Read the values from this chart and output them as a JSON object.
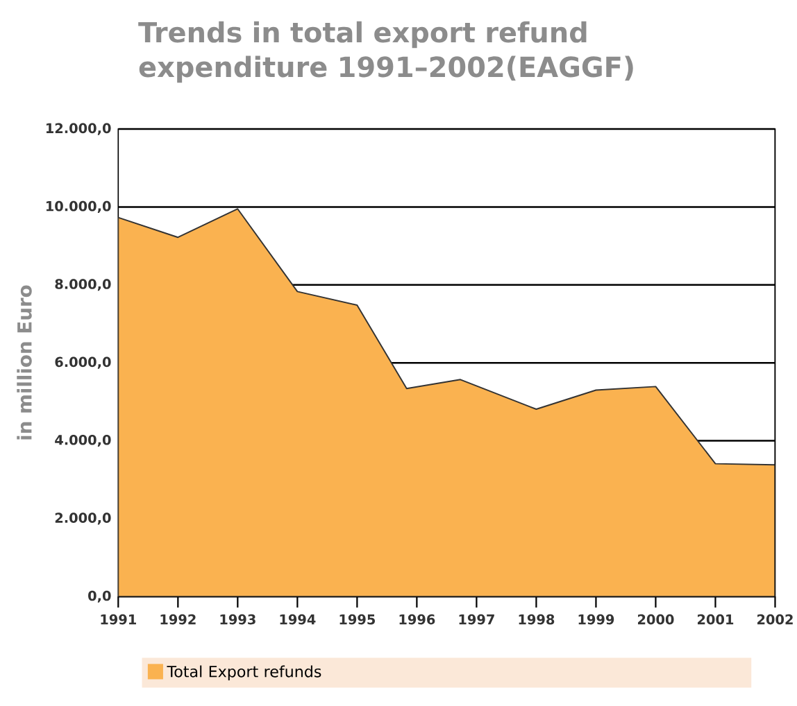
{
  "chart_data": {
    "type": "area",
    "title": "Trends in total export refund expenditure 1991–2002(EAGGF)",
    "ylabel": "in million Euro",
    "x": [
      1991,
      1992,
      1993,
      1994,
      1995,
      1995.83,
      1996.73,
      1998,
      1999,
      2000,
      2001,
      2002
    ],
    "series": [
      {
        "name": "Total Export refunds",
        "color": "#fab250",
        "values": [
          9730,
          9220,
          9950,
          7830,
          7480,
          5340,
          5570,
          4810,
          5300,
          5390,
          3410,
          3380
        ]
      }
    ],
    "xlim": [
      1991,
      2002
    ],
    "xticks": [
      1991,
      1992,
      1993,
      1994,
      1995,
      1996,
      1997,
      1998,
      1999,
      2000,
      2001,
      2002
    ],
    "ylim": [
      0,
      12000
    ],
    "yticks": [
      {
        "value": 0,
        "label": "0,0"
      },
      {
        "value": 2000,
        "label": "2.000,0"
      },
      {
        "value": 4000,
        "label": "4.000,0"
      },
      {
        "value": 6000,
        "label": "6.000,0"
      },
      {
        "value": 8000,
        "label": "8.000,0"
      },
      {
        "value": 10000,
        "label": "10.000,0"
      },
      {
        "value": 12000,
        "label": "12.000,0"
      }
    ],
    "grid": "y",
    "legend": "bottom"
  }
}
